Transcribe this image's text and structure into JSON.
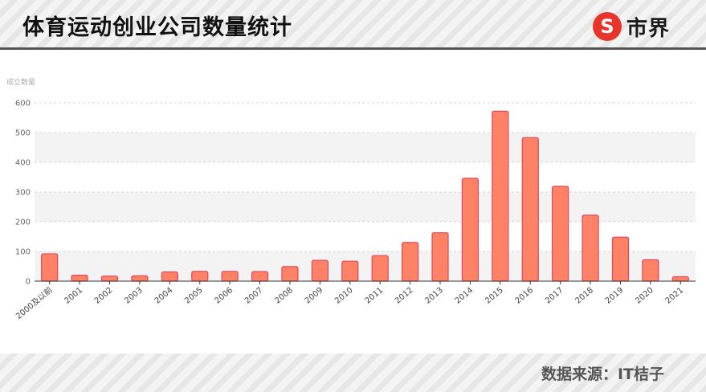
{
  "header": {
    "title": "体育运动创业公司数量统计",
    "logo_text": "市界",
    "logo_mark": "S"
  },
  "footer": {
    "source": "数据来源：IT桔子"
  },
  "colors": {
    "bar_fill": "#ff8266",
    "bar_stroke": "#e0475e",
    "band": "#f3f3f4",
    "logo_red": "#e8352b"
  },
  "chart_data": {
    "type": "bar",
    "title": "",
    "xlabel": "",
    "ylabel": "成立数量",
    "ylim": [
      0,
      600
    ],
    "yticks": [
      0,
      100,
      200,
      300,
      400,
      500,
      600
    ],
    "grid": true,
    "categories": [
      "2000及以前",
      "2001",
      "2002",
      "2003",
      "2004",
      "2005",
      "2006",
      "2007",
      "2008",
      "2009",
      "2010",
      "2011",
      "2012",
      "2013",
      "2014",
      "2015",
      "2016",
      "2017",
      "2018",
      "2019",
      "2020",
      "2021"
    ],
    "values": [
      92,
      20,
      17,
      18,
      31,
      33,
      33,
      32,
      49,
      70,
      67,
      86,
      130,
      163,
      346,
      572,
      483,
      319,
      222,
      148,
      72,
      15
    ]
  }
}
